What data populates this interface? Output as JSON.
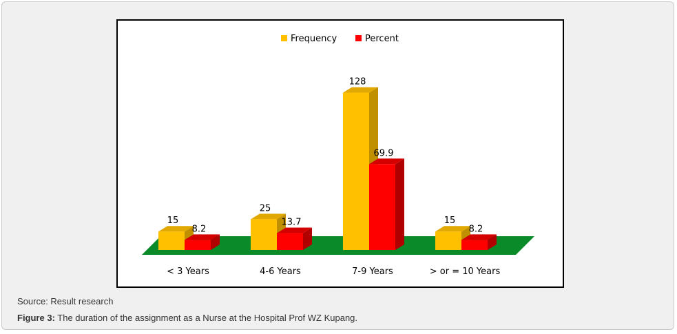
{
  "caption": {
    "source": "Source: Result research",
    "figure_label": "Figure 3:",
    "figure_text": "The duration of the assignment as a Nurse at the Hospital Prof WZ Kupang."
  },
  "chart_data": {
    "type": "bar",
    "style": "3d-clustered-column",
    "categories": [
      "< 3 Years",
      "4-6 Years",
      "7-9 Years",
      "> or = 10 Years"
    ],
    "series": [
      {
        "name": "Frequency",
        "values": [
          15,
          25,
          128,
          15
        ],
        "labels": [
          "15",
          "25",
          "128",
          "15"
        ],
        "color": "#ffc000",
        "side_color": "#c09000",
        "top_color": "#e0a800"
      },
      {
        "name": "Percent",
        "values": [
          8.2,
          13.7,
          69.9,
          8.2
        ],
        "labels": [
          "8.2",
          "13.7",
          "69.9",
          "8.2"
        ],
        "color": "#ff0000",
        "side_color": "#b00000",
        "top_color": "#d40000"
      }
    ],
    "floor_color": "#0b8a2a",
    "legend_position": "top",
    "ylim": [
      0,
      130
    ],
    "title": "",
    "xlabel": "",
    "ylabel": ""
  }
}
